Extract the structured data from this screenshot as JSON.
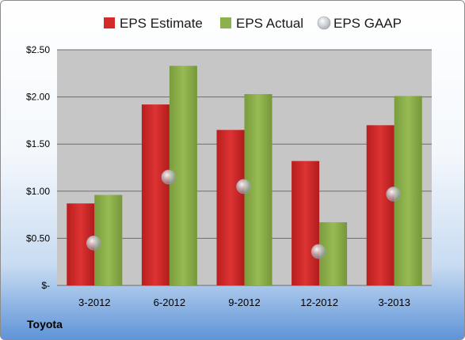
{
  "chart_data": {
    "type": "bar",
    "title": "",
    "xlabel": "",
    "ylabel": "",
    "categories": [
      "3-2012",
      "6-2012",
      "9-2012",
      "12-2012",
      "3-2013"
    ],
    "series": [
      {
        "name": "EPS Estimate",
        "kind": "bar",
        "color": "#d42a2a",
        "values": [
          0.87,
          1.92,
          1.65,
          1.32,
          1.7
        ]
      },
      {
        "name": "EPS Actual",
        "kind": "bar",
        "color": "#8cb04a",
        "values": [
          0.96,
          2.33,
          2.03,
          0.67,
          2.01
        ]
      },
      {
        "name": "EPS GAAP",
        "kind": "marker",
        "color": "#b8bcc4",
        "values": [
          0.45,
          1.15,
          1.05,
          0.36,
          0.97
        ]
      }
    ],
    "ylim": [
      0,
      2.5
    ],
    "yticks": [
      0,
      0.5,
      1.0,
      1.5,
      2.0,
      2.5
    ],
    "ytick_labels": [
      "$-",
      "$0.50",
      "$1.00",
      "$1.50",
      "$2.00",
      "$2.50"
    ],
    "grid": true,
    "legend_position": "top"
  },
  "footer": {
    "company": "Toyota"
  },
  "colors": {
    "plot_background": "#c6c6c6",
    "gridline": "#6e6e6e"
  }
}
